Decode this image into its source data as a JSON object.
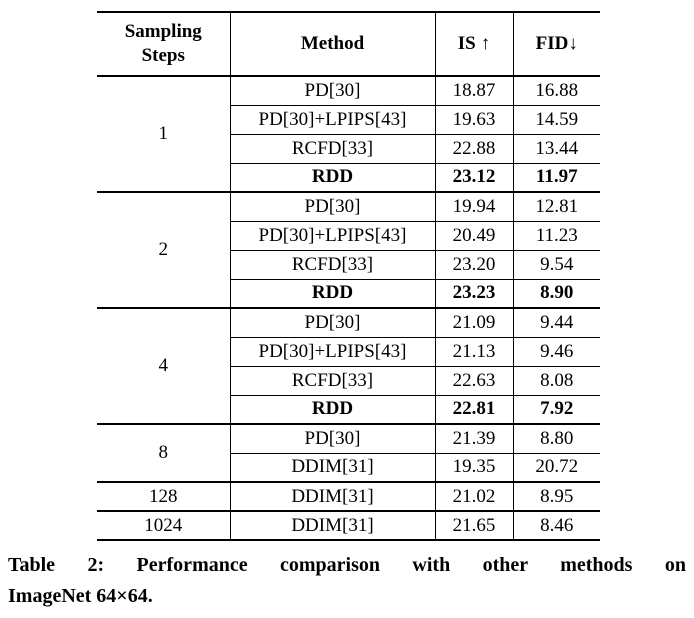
{
  "page": {
    "background_color": "#ffffff",
    "text_color": "#000000",
    "border_color": "#000000"
  },
  "table": {
    "headers": {
      "steps": "Sampling Steps",
      "method": "Method",
      "is": "IS",
      "is_arrow": "↑",
      "fid": "FID",
      "fid_arrow": "↓"
    },
    "groups": [
      {
        "steps": "1",
        "rows": [
          {
            "method": "PD[30]",
            "is": "18.87",
            "fid": "16.88",
            "bold": false
          },
          {
            "method": "PD[30]+LPIPS[43]",
            "is": "19.63",
            "fid": "14.59",
            "bold": false
          },
          {
            "method": "RCFD[33]",
            "is": "22.88",
            "fid": "13.44",
            "bold": false
          },
          {
            "method": "RDD",
            "is": "23.12",
            "fid": "11.97",
            "bold": true
          }
        ]
      },
      {
        "steps": "2",
        "rows": [
          {
            "method": "PD[30]",
            "is": "19.94",
            "fid": "12.81",
            "bold": false
          },
          {
            "method": "PD[30]+LPIPS[43]",
            "is": "20.49",
            "fid": "11.23",
            "bold": false
          },
          {
            "method": "RCFD[33]",
            "is": "23.20",
            "fid": "9.54",
            "bold": false
          },
          {
            "method": "RDD",
            "is": "23.23",
            "fid": "8.90",
            "bold": true
          }
        ]
      },
      {
        "steps": "4",
        "rows": [
          {
            "method": "PD[30]",
            "is": "21.09",
            "fid": "9.44",
            "bold": false
          },
          {
            "method": "PD[30]+LPIPS[43]",
            "is": "21.13",
            "fid": "9.46",
            "bold": false
          },
          {
            "method": "RCFD[33]",
            "is": "22.63",
            "fid": "8.08",
            "bold": false
          },
          {
            "method": "RDD",
            "is": "22.81",
            "fid": "7.92",
            "bold": true
          }
        ]
      },
      {
        "steps": "8",
        "rows": [
          {
            "method": "PD[30]",
            "is": "21.39",
            "fid": "8.80",
            "bold": false
          },
          {
            "method": "DDIM[31]",
            "is": "19.35",
            "fid": "20.72",
            "bold": false
          }
        ]
      },
      {
        "steps": "128",
        "rows": [
          {
            "method": "DDIM[31]",
            "is": "21.02",
            "fid": "8.95",
            "bold": false
          }
        ]
      },
      {
        "steps": "1024",
        "rows": [
          {
            "method": "DDIM[31]",
            "is": "21.65",
            "fid": "8.46",
            "bold": false
          }
        ]
      }
    ]
  },
  "caption": {
    "lines": [
      "Table 2: Performance comparison with other methods on",
      "ImageNet 64×64."
    ]
  }
}
